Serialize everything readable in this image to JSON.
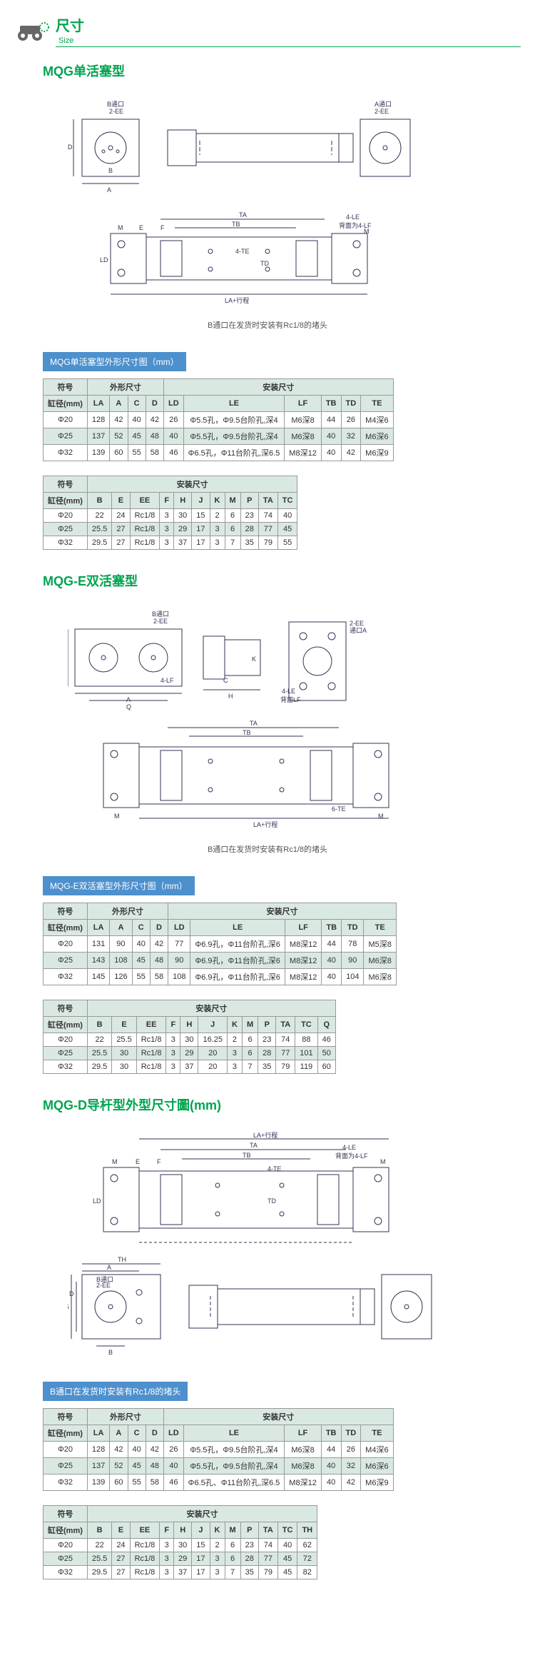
{
  "header": {
    "title_cn": "尺寸",
    "title_en": "Size"
  },
  "sections": {
    "mqg": {
      "title": "MQG单活塞型",
      "note": "B通口在发货时安装有Rc1/8的堵头",
      "table_title": "MQG单活塞型外形尺寸图（mm）",
      "t1": {
        "h1": [
          "符号",
          "外形尺寸",
          "安装尺寸"
        ],
        "h2": [
          "缸径(mm)",
          "LA",
          "A",
          "C",
          "D",
          "LD",
          "LE",
          "LF",
          "TB",
          "TD",
          "TE"
        ],
        "rows": [
          [
            "Φ20",
            "128",
            "42",
            "40",
            "42",
            "26",
            "Φ5.5孔，Φ9.5台阶孔,深4",
            "M6深8",
            "44",
            "26",
            "M4深6"
          ],
          [
            "Φ25",
            "137",
            "52",
            "45",
            "48",
            "40",
            "Φ5.5孔，Φ9.5台阶孔,深4",
            "M6深8",
            "40",
            "32",
            "M6深6"
          ],
          [
            "Φ32",
            "139",
            "60",
            "55",
            "58",
            "46",
            "Φ6.5孔，Φ11台阶孔,深6.5",
            "M8深12",
            "40",
            "42",
            "M6深9"
          ]
        ]
      },
      "t2": {
        "h1": [
          "符号",
          "安装尺寸"
        ],
        "h2": [
          "缸径(mm)",
          "B",
          "E",
          "EE",
          "F",
          "H",
          "J",
          "K",
          "M",
          "P",
          "TA",
          "TC"
        ],
        "rows": [
          [
            "Φ20",
            "22",
            "24",
            "Rc1/8",
            "3",
            "30",
            "15",
            "2",
            "6",
            "23",
            "74",
            "40"
          ],
          [
            "Φ25",
            "25.5",
            "27",
            "Rc1/8",
            "3",
            "29",
            "17",
            "3",
            "6",
            "28",
            "77",
            "45"
          ],
          [
            "Φ32",
            "29.5",
            "27",
            "Rc1/8",
            "3",
            "37",
            "17",
            "3",
            "7",
            "35",
            "79",
            "55"
          ]
        ]
      }
    },
    "mqge": {
      "title": "MQG-E双活塞型",
      "note": "B通口在发货时安装有Rc1/8的堵头",
      "table_title": "MQG-E双活塞型外形尺寸图（mm）",
      "t1": {
        "h1": [
          "符号",
          "外形尺寸",
          "安装尺寸"
        ],
        "h2": [
          "缸径(mm)",
          "LA",
          "A",
          "C",
          "D",
          "LD",
          "LE",
          "LF",
          "TB",
          "TD",
          "TE"
        ],
        "rows": [
          [
            "Φ20",
            "131",
            "90",
            "40",
            "42",
            "77",
            "Φ6.9孔，Φ11台阶孔,深6",
            "M8深12",
            "44",
            "78",
            "M5深8"
          ],
          [
            "Φ25",
            "143",
            "108",
            "45",
            "48",
            "90",
            "Φ6.9孔，Φ11台阶孔,深6",
            "M8深12",
            "40",
            "90",
            "M6深8"
          ],
          [
            "Φ32",
            "145",
            "126",
            "55",
            "58",
            "108",
            "Φ6.9孔，Φ11台阶孔,深6",
            "M8深12",
            "40",
            "104",
            "M6深8"
          ]
        ]
      },
      "t2": {
        "h1": [
          "符号",
          "安装尺寸"
        ],
        "h2": [
          "缸径(mm)",
          "B",
          "E",
          "EE",
          "F",
          "H",
          "J",
          "K",
          "M",
          "P",
          "TA",
          "TC",
          "Q"
        ],
        "rows": [
          [
            "Φ20",
            "22",
            "25.5",
            "Rc1/8",
            "3",
            "30",
            "16.25",
            "2",
            "6",
            "23",
            "74",
            "88",
            "46"
          ],
          [
            "Φ25",
            "25.5",
            "30",
            "Rc1/8",
            "3",
            "29",
            "20",
            "3",
            "6",
            "28",
            "77",
            "101",
            "50"
          ],
          [
            "Φ32",
            "29.5",
            "30",
            "Rc1/8",
            "3",
            "37",
            "20",
            "3",
            "7",
            "35",
            "79",
            "119",
            "60"
          ]
        ]
      }
    },
    "mqgd": {
      "title": "MQG-D导杆型外型尺寸圖(mm)",
      "table_title": "B通口在发货时安装有Rc1/8的堵头",
      "t1": {
        "h1": [
          "符号",
          "外形尺寸",
          "安装尺寸"
        ],
        "h2": [
          "缸径(mm)",
          "LA",
          "A",
          "C",
          "D",
          "LD",
          "LE",
          "LF",
          "TB",
          "TD",
          "TE"
        ],
        "rows": [
          [
            "Φ20",
            "128",
            "42",
            "40",
            "42",
            "26",
            "Φ5.5孔，Φ9.5台阶孔,深4",
            "M6深8",
            "44",
            "26",
            "M4深6"
          ],
          [
            "Φ25",
            "137",
            "52",
            "45",
            "48",
            "40",
            "Φ5.5孔，Φ9.5台阶孔,深4",
            "M6深8",
            "40",
            "32",
            "M6深6"
          ],
          [
            "Φ32",
            "139",
            "60",
            "55",
            "58",
            "46",
            "Φ6.5孔、Φ11台阶孔,深6.5",
            "M8深12",
            "40",
            "42",
            "M6深9"
          ]
        ]
      },
      "t2": {
        "h1": [
          "符号",
          "安装尺寸"
        ],
        "h2": [
          "缸径(mm)",
          "B",
          "E",
          "EE",
          "F",
          "H",
          "J",
          "K",
          "M",
          "P",
          "TA",
          "TC",
          "TH"
        ],
        "rows": [
          [
            "Φ20",
            "22",
            "24",
            "Rc1/8",
            "3",
            "30",
            "15",
            "2",
            "6",
            "23",
            "74",
            "40",
            "62"
          ],
          [
            "Φ25",
            "25.5",
            "27",
            "Rc1/8",
            "3",
            "29",
            "17",
            "3",
            "6",
            "28",
            "77",
            "45",
            "72"
          ],
          [
            "Φ32",
            "29.5",
            "27",
            "Rc1/8",
            "3",
            "37",
            "17",
            "3",
            "7",
            "35",
            "79",
            "45",
            "82"
          ]
        ]
      }
    }
  },
  "colors": {
    "green": "#00a44f",
    "blue": "#4d90cd",
    "th_bg": "#dae8e2",
    "border": "#999999",
    "diagram_line": "#333399"
  }
}
